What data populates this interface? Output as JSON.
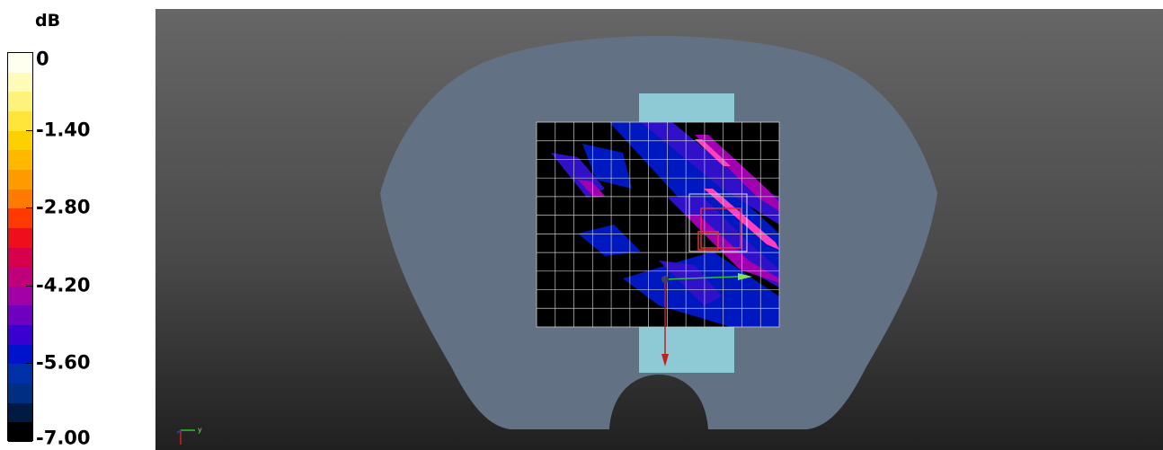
{
  "legend": {
    "unit": "dB",
    "labels": [
      "0",
      "-1.40",
      "-2.80",
      "-4.20",
      "-5.60",
      "-7.00"
    ],
    "colors": [
      "#fffff0",
      "#fffbb8",
      "#fff27a",
      "#ffe53a",
      "#ffd000",
      "#ffb800",
      "#ff9a00",
      "#ff7a00",
      "#ff3a00",
      "#ee0f1a",
      "#d6004d",
      "#c0007a",
      "#a000a6",
      "#7000c0",
      "#3a00d0",
      "#0012cc",
      "#0030a8",
      "#002e80",
      "#001a44",
      "#000000"
    ]
  },
  "viewport": {
    "triad": {
      "y_label": "y"
    }
  },
  "colors": {
    "phantom": "#627284",
    "plate": "#8ccad6",
    "grid_line": "#c8c8c8",
    "zoom_box": "#e0303a",
    "arrow_green": "#30c030",
    "arrow_red": "#c02020"
  }
}
